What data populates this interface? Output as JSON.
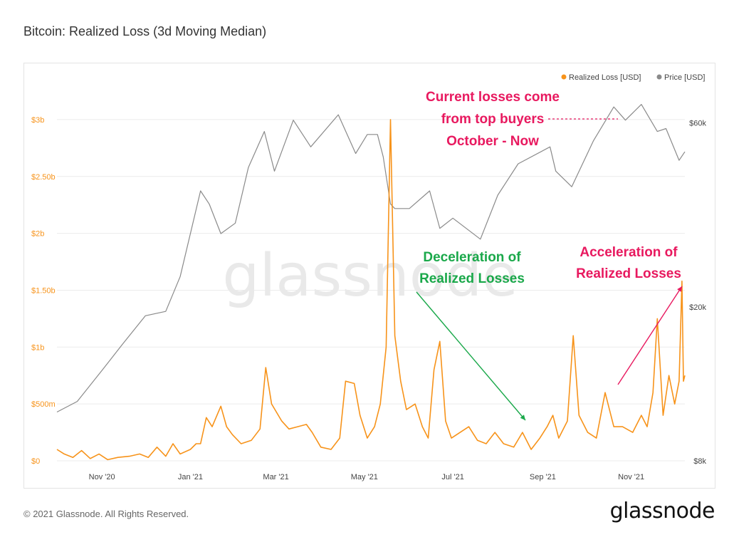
{
  "title": "Bitcoin: Realized Loss (3d Moving Median)",
  "footer": {
    "copyright": "© 2021 Glassnode. All Rights Reserved.",
    "logo": "glassnode"
  },
  "watermark": "glassnode",
  "colors": {
    "loss": "#f7931a",
    "price": "#8a8a8a",
    "pink": "#e8195f",
    "green": "#1aa84a",
    "grid": "#ebebeb"
  },
  "chart_data": {
    "type": "line",
    "title": "Bitcoin: Realized Loss (3d Moving Median)",
    "legend": {
      "position": "top-right",
      "items": [
        "Realized Loss [USD]",
        "Price [USD]"
      ]
    },
    "x_ticks": [
      "Nov '20",
      "Jan '21",
      "Mar '21",
      "May '21",
      "Jul '21",
      "Sep '21",
      "Nov '21"
    ],
    "x_tick_dates": [
      "2020-11-01",
      "2021-01-01",
      "2021-03-01",
      "2021-05-01",
      "2021-07-01",
      "2021-09-01",
      "2021-11-01"
    ],
    "x_range": [
      "2020-10-01",
      "2021-12-08"
    ],
    "y_left": {
      "label": "Realized Loss [USD]",
      "ticks": [
        "$0",
        "$500m",
        "$1b",
        "$1.50b",
        "$2b",
        "$2.50b",
        "$3b"
      ],
      "tick_values": [
        0,
        500000000,
        1000000000,
        1500000000,
        2000000000,
        2500000000,
        3000000000
      ],
      "range": [
        0,
        3300000000
      ]
    },
    "y_right": {
      "label": "Price [USD]",
      "scale": "log",
      "ticks": [
        "$8k",
        "$20k",
        "$60k"
      ],
      "tick_values": [
        8000,
        20000,
        60000
      ],
      "range": [
        8000,
        75000
      ]
    },
    "grid": true,
    "series": [
      {
        "name": "Realized Loss [USD]",
        "axis": "left",
        "points": [
          [
            "2020-10-01",
            100000000
          ],
          [
            "2020-10-06",
            60000000
          ],
          [
            "2020-10-12",
            30000000
          ],
          [
            "2020-10-18",
            90000000
          ],
          [
            "2020-10-24",
            20000000
          ],
          [
            "2020-10-30",
            60000000
          ],
          [
            "2020-11-05",
            10000000
          ],
          [
            "2020-11-12",
            30000000
          ],
          [
            "2020-11-20",
            40000000
          ],
          [
            "2020-11-27",
            60000000
          ],
          [
            "2020-12-03",
            30000000
          ],
          [
            "2020-12-09",
            120000000
          ],
          [
            "2020-12-15",
            40000000
          ],
          [
            "2020-12-20",
            150000000
          ],
          [
            "2020-12-25",
            60000000
          ],
          [
            "2021-01-01",
            100000000
          ],
          [
            "2021-01-05",
            150000000
          ],
          [
            "2021-01-08",
            150000000
          ],
          [
            "2021-01-12",
            380000000
          ],
          [
            "2021-01-16",
            300000000
          ],
          [
            "2021-01-22",
            480000000
          ],
          [
            "2021-01-26",
            300000000
          ],
          [
            "2021-01-30",
            230000000
          ],
          [
            "2021-02-05",
            150000000
          ],
          [
            "2021-02-12",
            180000000
          ],
          [
            "2021-02-18",
            280000000
          ],
          [
            "2021-02-22",
            820000000
          ],
          [
            "2021-02-26",
            500000000
          ],
          [
            "2021-03-05",
            350000000
          ],
          [
            "2021-03-10",
            280000000
          ],
          [
            "2021-03-16",
            300000000
          ],
          [
            "2021-03-22",
            320000000
          ],
          [
            "2021-03-26",
            250000000
          ],
          [
            "2021-04-01",
            120000000
          ],
          [
            "2021-04-08",
            100000000
          ],
          [
            "2021-04-14",
            200000000
          ],
          [
            "2021-04-18",
            700000000
          ],
          [
            "2021-04-24",
            680000000
          ],
          [
            "2021-04-28",
            400000000
          ],
          [
            "2021-05-03",
            200000000
          ],
          [
            "2021-05-08",
            300000000
          ],
          [
            "2021-05-12",
            500000000
          ],
          [
            "2021-05-16",
            1000000000
          ],
          [
            "2021-05-19",
            3000000000
          ],
          [
            "2021-05-22",
            1100000000
          ],
          [
            "2021-05-26",
            700000000
          ],
          [
            "2021-05-30",
            450000000
          ],
          [
            "2021-06-05",
            500000000
          ],
          [
            "2021-06-10",
            300000000
          ],
          [
            "2021-06-14",
            200000000
          ],
          [
            "2021-06-18",
            800000000
          ],
          [
            "2021-06-22",
            1050000000
          ],
          [
            "2021-06-26",
            350000000
          ],
          [
            "2021-06-30",
            200000000
          ],
          [
            "2021-07-06",
            250000000
          ],
          [
            "2021-07-12",
            300000000
          ],
          [
            "2021-07-18",
            180000000
          ],
          [
            "2021-07-24",
            150000000
          ],
          [
            "2021-07-30",
            250000000
          ],
          [
            "2021-08-05",
            150000000
          ],
          [
            "2021-08-12",
            120000000
          ],
          [
            "2021-08-18",
            250000000
          ],
          [
            "2021-08-24",
            100000000
          ],
          [
            "2021-08-30",
            200000000
          ],
          [
            "2021-09-04",
            300000000
          ],
          [
            "2021-09-08",
            400000000
          ],
          [
            "2021-09-12",
            200000000
          ],
          [
            "2021-09-18",
            350000000
          ],
          [
            "2021-09-22",
            1100000000
          ],
          [
            "2021-09-26",
            400000000
          ],
          [
            "2021-10-02",
            250000000
          ],
          [
            "2021-10-08",
            200000000
          ],
          [
            "2021-10-14",
            600000000
          ],
          [
            "2021-10-20",
            300000000
          ],
          [
            "2021-10-26",
            300000000
          ],
          [
            "2021-11-02",
            250000000
          ],
          [
            "2021-11-08",
            400000000
          ],
          [
            "2021-11-12",
            300000000
          ],
          [
            "2021-11-16",
            600000000
          ],
          [
            "2021-11-19",
            1250000000
          ],
          [
            "2021-11-23",
            400000000
          ],
          [
            "2021-11-27",
            750000000
          ],
          [
            "2021-12-01",
            500000000
          ],
          [
            "2021-12-04",
            700000000
          ],
          [
            "2021-12-06",
            1580000000
          ],
          [
            "2021-12-07",
            700000000
          ],
          [
            "2021-12-08",
            750000000
          ]
        ]
      },
      {
        "name": "Price [USD]",
        "axis": "right",
        "points": [
          [
            "2020-10-01",
            10700
          ],
          [
            "2020-10-15",
            11400
          ],
          [
            "2020-11-01",
            13700
          ],
          [
            "2020-11-15",
            16000
          ],
          [
            "2020-12-01",
            19000
          ],
          [
            "2020-12-15",
            19500
          ],
          [
            "2020-12-25",
            24000
          ],
          [
            "2021-01-08",
            40000
          ],
          [
            "2021-01-14",
            37000
          ],
          [
            "2021-01-22",
            31000
          ],
          [
            "2021-02-01",
            33000
          ],
          [
            "2021-02-10",
            46000
          ],
          [
            "2021-02-21",
            57000
          ],
          [
            "2021-02-28",
            45000
          ],
          [
            "2021-03-13",
            61000
          ],
          [
            "2021-03-25",
            52000
          ],
          [
            "2021-04-13",
            63000
          ],
          [
            "2021-04-25",
            50000
          ],
          [
            "2021-05-03",
            56000
          ],
          [
            "2021-05-10",
            56000
          ],
          [
            "2021-05-14",
            49000
          ],
          [
            "2021-05-19",
            37000
          ],
          [
            "2021-05-22",
            36000
          ],
          [
            "2021-06-01",
            36000
          ],
          [
            "2021-06-15",
            40000
          ],
          [
            "2021-06-22",
            32000
          ],
          [
            "2021-07-01",
            34000
          ],
          [
            "2021-07-20",
            30000
          ],
          [
            "2021-08-01",
            39000
          ],
          [
            "2021-08-15",
            47000
          ],
          [
            "2021-09-06",
            52000
          ],
          [
            "2021-09-10",
            45000
          ],
          [
            "2021-09-21",
            41000
          ],
          [
            "2021-10-06",
            54000
          ],
          [
            "2021-10-20",
            66000
          ],
          [
            "2021-10-28",
            61000
          ],
          [
            "2021-11-08",
            67000
          ],
          [
            "2021-11-19",
            57000
          ],
          [
            "2021-11-25",
            58000
          ],
          [
            "2021-12-04",
            48000
          ],
          [
            "2021-12-08",
            50500
          ]
        ]
      }
    ],
    "annotations": [
      {
        "text": "Current losses come from top buyers October - Now",
        "lines": [
          "Current losses come",
          "from top buyers",
          "October - Now"
        ],
        "color": "pink"
      },
      {
        "text": "Deceleration of Realized Losses",
        "lines": [
          "Deceleration of",
          "Realized Losses"
        ],
        "color": "green"
      },
      {
        "text": "Acceleration of Realized Losses",
        "lines": [
          "Acceleration of",
          "Realized Losses"
        ],
        "color": "pink"
      }
    ]
  }
}
